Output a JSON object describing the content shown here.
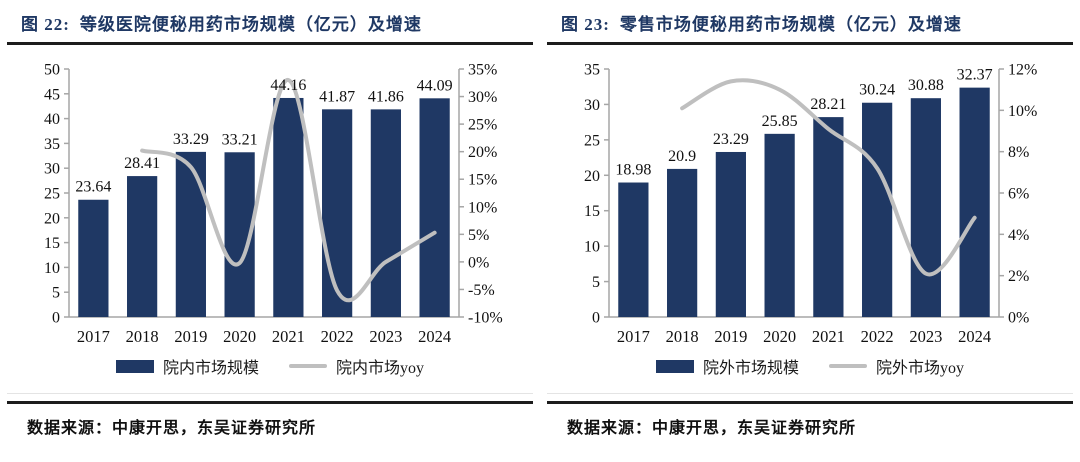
{
  "colors": {
    "bar": "#1f3864",
    "line": "#bfbfbf",
    "title": "#1f3864",
    "axis": "#a6a6a6",
    "text": "#111111",
    "rule": "#1c1c1c"
  },
  "figures": [
    {
      "title_label": "图 22:",
      "title": "等级医院便秘用药市场规模（亿元）及增速",
      "source_label": "数据来源：",
      "source_text": "中康开思，东吴证券研究所"
    },
    {
      "title_label": "图 23:",
      "title": "零售市场便秘用药市场规模（亿元）及增速",
      "source_label": "数据来源：",
      "source_text": "中康开思，东吴证券研究所"
    }
  ],
  "chart_data": [
    {
      "type": "bar",
      "title": "图 22: 等级医院便秘用药市场规模（亿元）及增速",
      "categories": [
        "2017",
        "2018",
        "2019",
        "2020",
        "2021",
        "2022",
        "2023",
        "2024"
      ],
      "series": [
        {
          "name": "院内市场规模",
          "kind": "bar",
          "axis": "left",
          "color": "#1f3864",
          "values": [
            23.64,
            28.41,
            33.29,
            33.21,
            44.16,
            41.87,
            41.86,
            44.09
          ]
        },
        {
          "name": "院内市场yoy",
          "kind": "line",
          "axis": "right",
          "color": "#bfbfbf",
          "unit": "%",
          "values": [
            null,
            20.2,
            17.2,
            -0.2,
            33.0,
            -5.2,
            0.0,
            5.3
          ]
        }
      ],
      "left_axis": {
        "min": 0,
        "max": 50,
        "step": 5
      },
      "right_axis": {
        "min": -10,
        "max": 35,
        "step": 5,
        "suffix": "%"
      },
      "grid": false,
      "legend_position": "bottom"
    },
    {
      "type": "bar",
      "title": "图 23: 零售市场便秘用药市场规模（亿元）及增速",
      "categories": [
        "2017",
        "2018",
        "2019",
        "2020",
        "2021",
        "2022",
        "2023",
        "2024"
      ],
      "series": [
        {
          "name": "院外市场规模",
          "kind": "bar",
          "axis": "left",
          "color": "#1f3864",
          "values": [
            18.98,
            20.9,
            23.29,
            25.85,
            28.21,
            30.24,
            30.88,
            32.37
          ]
        },
        {
          "name": "院外市场yoy",
          "kind": "line",
          "axis": "right",
          "color": "#bfbfbf",
          "unit": "%",
          "values": [
            null,
            10.1,
            11.4,
            11.0,
            9.1,
            7.2,
            2.1,
            4.8
          ]
        }
      ],
      "left_axis": {
        "min": 0,
        "max": 35,
        "step": 5
      },
      "right_axis": {
        "min": 0,
        "max": 12,
        "step": 2,
        "suffix": "%"
      },
      "grid": false,
      "legend_position": "bottom"
    }
  ]
}
